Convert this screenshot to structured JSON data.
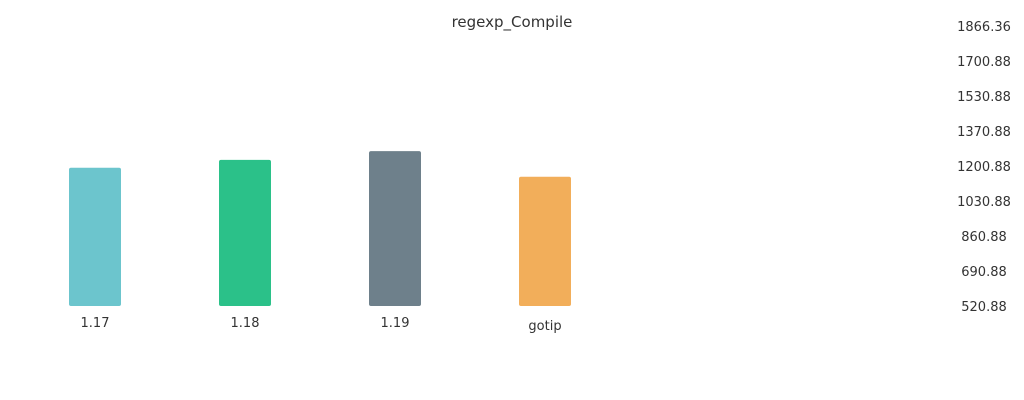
{
  "chart_data": {
    "type": "bar",
    "title": "regexp_Compile",
    "categories": [
      "1.17",
      "1.18",
      "1.19",
      "gotip"
    ],
    "values": [
      1185,
      1223,
      1265,
      1142
    ],
    "colors": [
      "#6cc5cd",
      "#2bc189",
      "#6e808b",
      "#f2ae5a"
    ],
    "ylim": [
      520.88,
      1866.36
    ],
    "yticks": [
      "1866.36",
      "1700.88",
      "1530.88",
      "1370.88",
      "1200.88",
      "1030.88",
      "860.88",
      "690.88",
      "520.88"
    ],
    "xlabel": "",
    "ylabel": "",
    "grid": false,
    "legend": "none",
    "yaxis_position": "right"
  }
}
